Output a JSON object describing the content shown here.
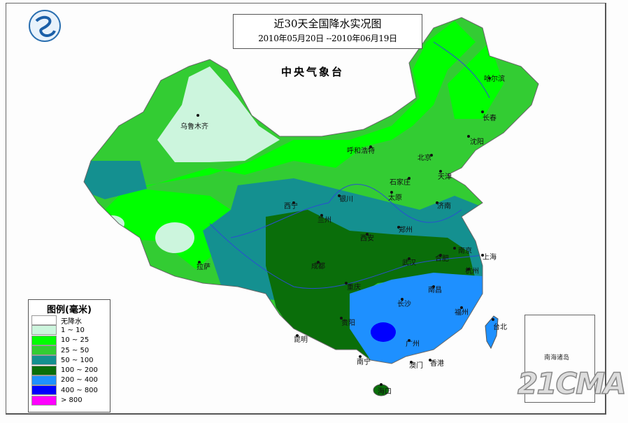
{
  "title": "近30天全国降水实况图",
  "date_range": "2010年05月20日 --2010年06月19日",
  "organization": "中央气象台",
  "watermark": "21CMA",
  "logo_icon": "cma-logo",
  "legend": {
    "title": "图例(毫米)",
    "items": [
      {
        "label": "无降水",
        "color": "#ffffff"
      },
      {
        "label": "1 ~ 10",
        "color": "#ccf5dd"
      },
      {
        "label": "10 ~ 25",
        "color": "#00ff00"
      },
      {
        "label": "25 ~ 50",
        "color": "#33cc33"
      },
      {
        "label": "50 ~ 100",
        "color": "#149090"
      },
      {
        "label": "100 ~ 200",
        "color": "#0a6e0a"
      },
      {
        "label": "200 ~ 400",
        "color": "#1e90ff"
      },
      {
        "label": "400 ~ 800",
        "color": "#0000ff"
      },
      {
        "label": "> 800",
        "color": "#ff00ff"
      }
    ]
  },
  "inset_label": "南海诸岛",
  "cities": [
    "乌鲁木齐",
    "哈尔滨",
    "长春",
    "沈阳",
    "呼和浩特",
    "北京",
    "天津",
    "石家庄",
    "太原",
    "济南",
    "银川",
    "西宁",
    "兰州",
    "西安",
    "郑州",
    "南京",
    "上海",
    "合肥",
    "杭州",
    "武汉",
    "成都",
    "重庆",
    "拉萨",
    "南昌",
    "长沙",
    "福州",
    "贵阳",
    "台北",
    "昆明",
    "广州",
    "南宁",
    "澳门",
    "香港",
    "海口"
  ]
}
